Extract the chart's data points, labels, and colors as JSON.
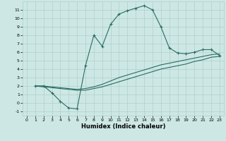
{
  "xlabel": "Humidex (Indice chaleur)",
  "background_color": "#cde8e4",
  "line_color": "#2a6b65",
  "grid_color": "#aecfcb",
  "xlim": [
    -0.5,
    23.5
  ],
  "ylim": [
    -1.5,
    12.0
  ],
  "xticks": [
    0,
    1,
    2,
    3,
    4,
    5,
    6,
    7,
    8,
    9,
    10,
    11,
    12,
    13,
    14,
    15,
    16,
    17,
    18,
    19,
    20,
    21,
    22,
    23
  ],
  "yticks": [
    -1,
    0,
    1,
    2,
    3,
    4,
    5,
    6,
    7,
    8,
    9,
    10,
    11
  ],
  "curve1_x": [
    1,
    2,
    3,
    4,
    5,
    6,
    7,
    8,
    9,
    10,
    11,
    12,
    13,
    14,
    15,
    16,
    17,
    18,
    19,
    20,
    21,
    22,
    23
  ],
  "curve1_y": [
    2.0,
    2.0,
    1.2,
    0.2,
    -0.6,
    -0.7,
    4.4,
    8.0,
    6.7,
    9.3,
    10.5,
    10.9,
    11.2,
    11.5,
    11.0,
    9.0,
    6.5,
    5.9,
    5.8,
    6.0,
    6.3,
    6.3,
    5.6
  ],
  "curve2_x": [
    1,
    2,
    3,
    4,
    5,
    6,
    7,
    8,
    9,
    10,
    11,
    12,
    13,
    14,
    15,
    16,
    17,
    18,
    19,
    20,
    21,
    22,
    23
  ],
  "curve2_y": [
    2.0,
    1.9,
    1.8,
    1.7,
    1.6,
    1.5,
    1.5,
    1.7,
    1.9,
    2.2,
    2.5,
    2.8,
    3.1,
    3.4,
    3.7,
    4.0,
    4.2,
    4.4,
    4.6,
    4.9,
    5.1,
    5.4,
    5.5
  ],
  "curve3_x": [
    1,
    2,
    3,
    4,
    5,
    6,
    7,
    8,
    9,
    10,
    11,
    12,
    13,
    14,
    15,
    16,
    17,
    18,
    19,
    20,
    21,
    22,
    23
  ],
  "curve3_y": [
    2.0,
    2.0,
    1.9,
    1.8,
    1.7,
    1.6,
    1.7,
    1.9,
    2.2,
    2.6,
    3.0,
    3.3,
    3.6,
    3.9,
    4.2,
    4.5,
    4.7,
    4.9,
    5.1,
    5.3,
    5.5,
    5.7,
    5.8
  ]
}
